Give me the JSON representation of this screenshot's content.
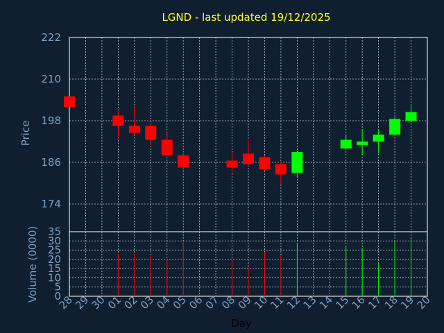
{
  "chart_data": {
    "type": "candlestick",
    "title": "LGND - last updated 19/12/2025",
    "xlabel": "Day",
    "price_panel": {
      "ylabel": "Price",
      "ylim": [
        166,
        222
      ],
      "yticks": [
        174,
        186,
        198,
        210,
        222
      ]
    },
    "volume_panel": {
      "ylabel": "Volume (0000)",
      "ylim": [
        0,
        35
      ],
      "yticks": [
        0,
        5,
        10,
        15,
        20,
        25,
        30,
        35
      ]
    },
    "x_ticks": [
      "28",
      "29",
      "30",
      "01",
      "02",
      "03",
      "04",
      "05",
      "06",
      "07",
      "08",
      "09",
      "10",
      "11",
      "12",
      "13",
      "14",
      "15",
      "16",
      "17",
      "18",
      "19",
      "20"
    ],
    "colors": {
      "up": "#00ff00",
      "down": "#ff0000",
      "title": "#ffff33",
      "axis_text": "#7f9fbf",
      "background": "#0f1f30",
      "grid": "#ffffff"
    },
    "candles": [
      {
        "day": "28",
        "open": 205,
        "high": 205,
        "low": 202,
        "close": 202,
        "volume": 0
      },
      {
        "day": "01",
        "open": 199.5,
        "high": 201,
        "low": 192.5,
        "close": 196.5,
        "volume": 23
      },
      {
        "day": "02",
        "open": 196.5,
        "high": 202.5,
        "low": 194,
        "close": 194.5,
        "volume": 23
      },
      {
        "day": "03",
        "open": 196.5,
        "high": 197,
        "low": 191,
        "close": 192.5,
        "volume": 22
      },
      {
        "day": "04",
        "open": 192.5,
        "high": 194.5,
        "low": 188,
        "close": 188,
        "volume": 20
      },
      {
        "day": "05",
        "open": 188,
        "high": 189,
        "low": 183.5,
        "close": 184.5,
        "volume": 30
      },
      {
        "day": "08",
        "open": 186.5,
        "high": 189,
        "low": 183,
        "close": 184.5,
        "volume": 20
      },
      {
        "day": "09",
        "open": 188.5,
        "high": 192.5,
        "low": 185,
        "close": 185.5,
        "volume": 16
      },
      {
        "day": "10",
        "open": 187.5,
        "high": 188,
        "low": 183.5,
        "close": 184,
        "volume": 24
      },
      {
        "day": "11",
        "open": 185.5,
        "high": 186,
        "low": 179.5,
        "close": 182.5,
        "volume": 22
      },
      {
        "day": "12",
        "open": 183,
        "high": 189,
        "low": 181.5,
        "close": 189,
        "volume": 29
      },
      {
        "day": "15",
        "open": 190,
        "high": 194,
        "low": 190,
        "close": 192.5,
        "volume": 27
      },
      {
        "day": "16",
        "open": 191,
        "high": 195.5,
        "low": 188,
        "close": 192,
        "volume": 26
      },
      {
        "day": "17",
        "open": 192,
        "high": 195.5,
        "low": 188.5,
        "close": 194,
        "volume": 18
      },
      {
        "day": "18",
        "open": 194,
        "high": 199,
        "low": 194,
        "close": 198.5,
        "volume": 30
      },
      {
        "day": "19",
        "open": 198,
        "high": 202.5,
        "low": 198,
        "close": 200.5,
        "volume": 31
      }
    ]
  }
}
